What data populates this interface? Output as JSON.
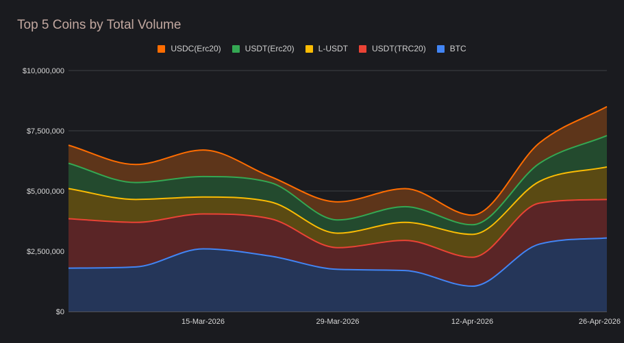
{
  "chart_data": {
    "type": "area",
    "stacked": true,
    "title": "Top 5 Coins by Total Volume",
    "xlabel": "",
    "ylabel": "",
    "x": [
      "2026-03-01",
      "2026-03-08",
      "2026-03-15",
      "2026-03-22",
      "2026-03-29",
      "2026-04-05",
      "2026-04-12",
      "2026-04-19",
      "2026-04-26"
    ],
    "x_ticks": [
      "15-Mar-2026",
      "29-Mar-2026",
      "12-Apr-2026",
      "26-Apr-2026"
    ],
    "x_tick_index": [
      2,
      4,
      6,
      8
    ],
    "y_ticks": [
      "$0",
      "$2,500,000",
      "$5,000,000",
      "$7,500,000",
      "$10,000,000"
    ],
    "y_tick_values": [
      0,
      2500000,
      5000000,
      7500000,
      10000000
    ],
    "ylim": [
      0,
      10000000
    ],
    "grid": true,
    "legend_position": "top",
    "series": [
      {
        "name": "BTC",
        "color": "#4285f4",
        "fill": "#253659",
        "values": [
          1800000,
          1850000,
          2600000,
          2300000,
          1750000,
          1700000,
          1050000,
          2800000,
          3050000
        ]
      },
      {
        "name": "USDT(TRC20)",
        "color": "#ea4335",
        "fill": "#5a2526",
        "values": [
          2050000,
          1850000,
          1450000,
          1550000,
          900000,
          1250000,
          1200000,
          1700000,
          1600000
        ]
      },
      {
        "name": "L-USDT",
        "color": "#fbbc04",
        "fill": "#5a4a13",
        "values": [
          1250000,
          950000,
          700000,
          700000,
          600000,
          750000,
          950000,
          900000,
          1350000
        ]
      },
      {
        "name": "USDT(Erc20)",
        "color": "#34a853",
        "fill": "#234a2e",
        "values": [
          1050000,
          700000,
          850000,
          800000,
          550000,
          650000,
          400000,
          750000,
          1300000
        ]
      },
      {
        "name": "USDC(Erc20)",
        "color": "#ff6d01",
        "fill": "#5d351a",
        "values": [
          750000,
          750000,
          1100000,
          250000,
          750000,
          750000,
          400000,
          850000,
          1200000
        ]
      }
    ],
    "legend_order": [
      "USDC(Erc20)",
      "USDT(Erc20)",
      "L-USDT",
      "USDT(TRC20)",
      "BTC"
    ]
  }
}
